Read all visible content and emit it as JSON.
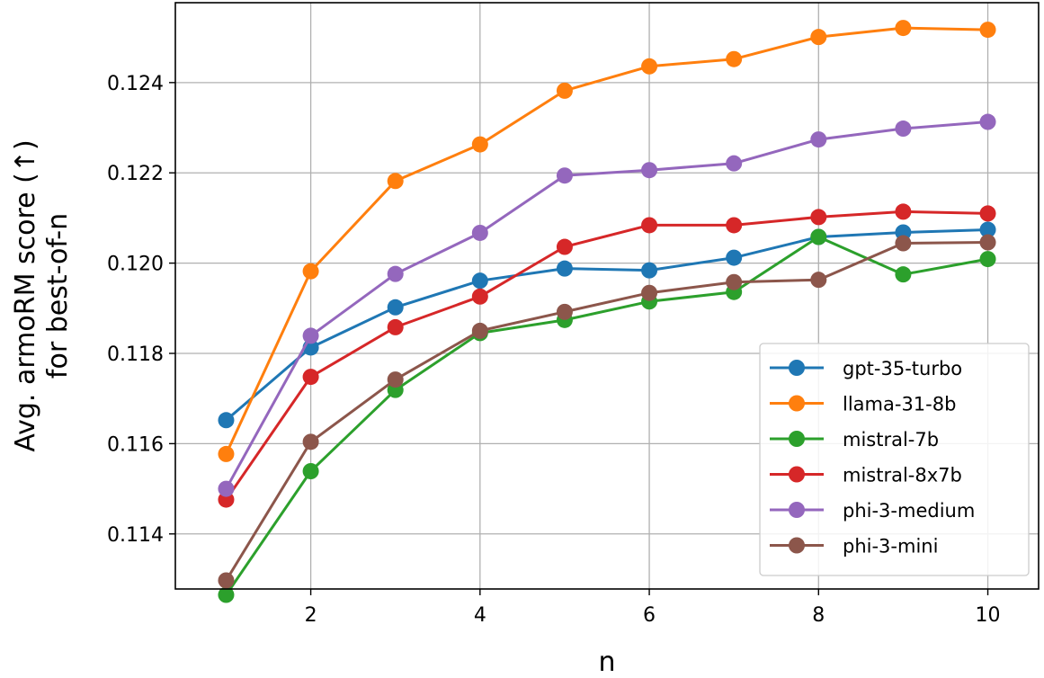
{
  "chart_data": {
    "type": "line",
    "title": "",
    "xlabel": "n",
    "ylabel_line1": "Avg. armoRM score (↑)",
    "ylabel_line2": "for best-of-n",
    "x": [
      1,
      2,
      3,
      4,
      5,
      6,
      7,
      8,
      9,
      10
    ],
    "xlim": [
      0.4,
      10.6
    ],
    "ylim": [
      0.11278,
      0.12577
    ],
    "x_ticks": [
      2,
      4,
      6,
      8,
      10
    ],
    "x_tick_labels": [
      "2",
      "4",
      "6",
      "8",
      "10"
    ],
    "y_ticks": [
      0.114,
      0.116,
      0.118,
      0.12,
      0.122,
      0.124
    ],
    "y_tick_labels": [
      "0.114",
      "0.116",
      "0.118",
      "0.120",
      "0.122",
      "0.124"
    ],
    "grid": true,
    "legend_position": "lower-right",
    "series": [
      {
        "name": "gpt-35-turbo",
        "color": "#1f77b4",
        "values": [
          0.11652,
          0.11813,
          0.11902,
          0.11961,
          0.11988,
          0.11984,
          0.12012,
          0.12058,
          0.12068,
          0.12074
        ]
      },
      {
        "name": "llama-31-8b",
        "color": "#ff7f0e",
        "values": [
          0.11577,
          0.11982,
          0.12182,
          0.12263,
          0.12382,
          0.12436,
          0.12452,
          0.12501,
          0.12521,
          0.12517
        ]
      },
      {
        "name": "mistral-7b",
        "color": "#2ca02c",
        "values": [
          0.11265,
          0.11539,
          0.11719,
          0.11845,
          0.11874,
          0.11915,
          0.11936,
          0.12058,
          0.11975,
          0.12009
        ]
      },
      {
        "name": "mistral-8x7b",
        "color": "#d62728",
        "values": [
          0.11476,
          0.11748,
          0.11858,
          0.11926,
          0.12036,
          0.12084,
          0.12084,
          0.12102,
          0.12114,
          0.1211
        ]
      },
      {
        "name": "phi-3-medium",
        "color": "#9467bd",
        "values": [
          0.115,
          0.11839,
          0.11976,
          0.12067,
          0.12194,
          0.12206,
          0.12221,
          0.12274,
          0.12298,
          0.12313
        ]
      },
      {
        "name": "phi-3-mini",
        "color": "#8c564b",
        "values": [
          0.11297,
          0.11604,
          0.11742,
          0.1185,
          0.11892,
          0.11934,
          0.11958,
          0.11963,
          0.12044,
          0.12046
        ]
      }
    ]
  }
}
